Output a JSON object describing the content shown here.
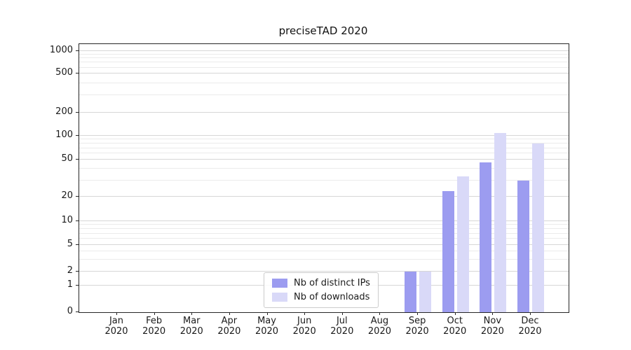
{
  "chart_data": {
    "type": "bar",
    "title": "preciseTAD 2020",
    "categories": [
      "Jan 2020",
      "Feb 2020",
      "Mar 2020",
      "Apr 2020",
      "May 2020",
      "Jun 2020",
      "Jul 2020",
      "Aug 2020",
      "Sep 2020",
      "Oct 2020",
      "Nov 2020",
      "Dec 2020"
    ],
    "series": [
      {
        "name": "Nb of distinct IPs",
        "color": "#9c9cf0",
        "values": [
          0,
          0,
          0,
          0,
          0,
          0,
          0,
          0,
          2,
          23,
          47,
          30
        ]
      },
      {
        "name": "Nb of downloads",
        "color": "#d9d9f8",
        "values": [
          0,
          0,
          0,
          0,
          0,
          0,
          0,
          0,
          2,
          33,
          108,
          80
        ]
      }
    ],
    "yscale": "symlog",
    "y_ticks": [
      0,
      1,
      2,
      5,
      10,
      20,
      50,
      100,
      200,
      500,
      1000
    ],
    "y_minor_gridlines": [
      3,
      4,
      6,
      7,
      8,
      9,
      30,
      40,
      60,
      70,
      80,
      90,
      300,
      400,
      600,
      700,
      800,
      900
    ],
    "ylim": [
      0,
      1250
    ],
    "grid": true,
    "legend_position": "lower center",
    "xlabel": "",
    "ylabel": ""
  },
  "colors": {
    "axis": "#262626",
    "grid_major": "#d6d6d6",
    "grid_minor": "#ebebeb",
    "background": "#ffffff"
  }
}
